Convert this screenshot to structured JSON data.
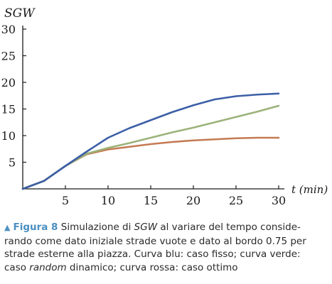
{
  "chart_data": {
    "type": "line",
    "ylabel": "SGW",
    "xlabel": "t (min)",
    "xlim": [
      0,
      30
    ],
    "ylim": [
      0,
      30
    ],
    "x_ticks": [
      5,
      10,
      15,
      20,
      25,
      30
    ],
    "y_ticks": [
      5,
      10,
      15,
      20,
      25,
      30
    ],
    "grid": false,
    "series": [
      {
        "color": "#3c5fa6",
        "x": [
          0,
          2.5,
          5,
          7.5,
          10,
          12.5,
          15,
          17.5,
          20,
          22.5,
          25,
          27.5,
          30
        ],
        "values": [
          0,
          1.5,
          4.3,
          7,
          9.6,
          11.4,
          12.9,
          14.4,
          15.7,
          16.8,
          17.4,
          17.7,
          17.9
        ]
      },
      {
        "color": "#9bb37a",
        "x": [
          0,
          2.5,
          5,
          7.5,
          10,
          12.5,
          15,
          17.5,
          20,
          22.5,
          25,
          27.5,
          30
        ],
        "values": [
          0,
          1.5,
          4.3,
          6.6,
          7.7,
          8.6,
          9.6,
          10.6,
          11.5,
          12.5,
          13.5,
          14.5,
          15.6
        ]
      },
      {
        "color": "#c47a52",
        "x": [
          0,
          2.5,
          5,
          7.5,
          10,
          12.5,
          15,
          17.5,
          20,
          22.5,
          25,
          27.5,
          30
        ],
        "values": [
          0,
          1.5,
          4.3,
          6.5,
          7.4,
          7.9,
          8.4,
          8.8,
          9.1,
          9.3,
          9.5,
          9.6,
          9.6
        ]
      }
    ]
  },
  "caption": {
    "triangle": "▲",
    "figure_label": "Figura 8",
    "line1_a": " Simulazione di ",
    "line1_em": "SGW",
    "line1_b": " al variare del tempo conside-",
    "line2": "rando come dato iniziale strade vuote e dato al bordo 0.75 per",
    "line3": "strade esterne alla piazza. Curva blu: caso fisso; curva verde:",
    "line4_a": "caso ",
    "line4_em": "random",
    "line4_b": " dinamico; curva rossa: caso ottimo"
  }
}
